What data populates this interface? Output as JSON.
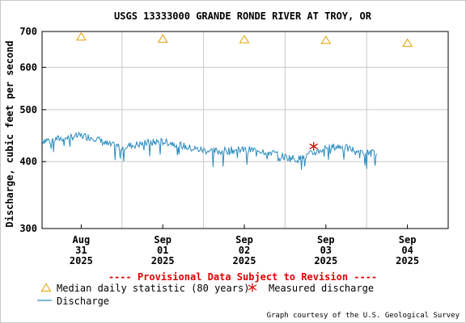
{
  "chart_data": {
    "type": "line",
    "title": "USGS 13333000 GRANDE RONDE RIVER AT TROY, OR",
    "ylabel": "Discharge, cubic feet per second",
    "xlabel": "",
    "y_scale": "log",
    "ylim": [
      300,
      700
    ],
    "y_ticks": [
      300,
      400,
      500,
      600,
      700
    ],
    "x_ticks": [
      {
        "line1": "Aug",
        "line2": "31",
        "line3": "2025",
        "day": 0
      },
      {
        "line1": "Sep",
        "line2": "01",
        "line3": "2025",
        "day": 1
      },
      {
        "line1": "Sep",
        "line2": "02",
        "line3": "2025",
        "day": 2
      },
      {
        "line1": "Sep",
        "line2": "03",
        "line3": "2025",
        "day": 3
      },
      {
        "line1": "Sep",
        "line2": "04",
        "line3": "2025",
        "day": 4
      }
    ],
    "xlim_days": [
      -0.48,
      4.5
    ],
    "grid": true,
    "provisional_notice": "---- Provisional Data Subject to Revision ----",
    "series": [
      {
        "name": "Discharge",
        "style": "line",
        "color": "#2a8bbf",
        "x_days": [
          -0.48,
          -0.33,
          -0.17,
          0.0,
          0.17,
          0.33,
          0.5,
          0.67,
          0.83,
          1.0,
          1.17,
          1.33,
          1.5,
          1.67,
          1.83,
          2.0,
          2.17,
          2.33,
          2.5,
          2.67,
          2.83,
          3.0,
          3.17,
          3.33,
          3.5,
          3.62
        ],
        "values": [
          438,
          440,
          444,
          447,
          443,
          430,
          426,
          430,
          434,
          436,
          432,
          424,
          420,
          418,
          420,
          421,
          420,
          416,
          408,
          404,
          414,
          424,
          427,
          421,
          416,
          414
        ]
      },
      {
        "name": "Median daily statistic (80 years)",
        "style": "marker",
        "marker": "triangle",
        "color": "#e0a000",
        "x_days": [
          0,
          1,
          2,
          3,
          4
        ],
        "values": [
          684,
          678,
          676,
          674,
          666
        ]
      },
      {
        "name": "Measured discharge",
        "style": "marker",
        "marker": "asterisk",
        "color": "#e00000",
        "x_days": [
          2.85
        ],
        "values": [
          427
        ]
      }
    ],
    "legend": {
      "placement": "bottom",
      "items": [
        {
          "label": "Median daily statistic (80 years)",
          "symbol": "triangle",
          "color": "#e0a000"
        },
        {
          "label": "Measured discharge",
          "symbol": "asterisk",
          "color": "#e00000"
        },
        {
          "label": "Discharge",
          "symbol": "line",
          "color": "#2a8bbf"
        }
      ]
    },
    "credit": "Graph courtesy of the U.S. Geological Survey"
  }
}
